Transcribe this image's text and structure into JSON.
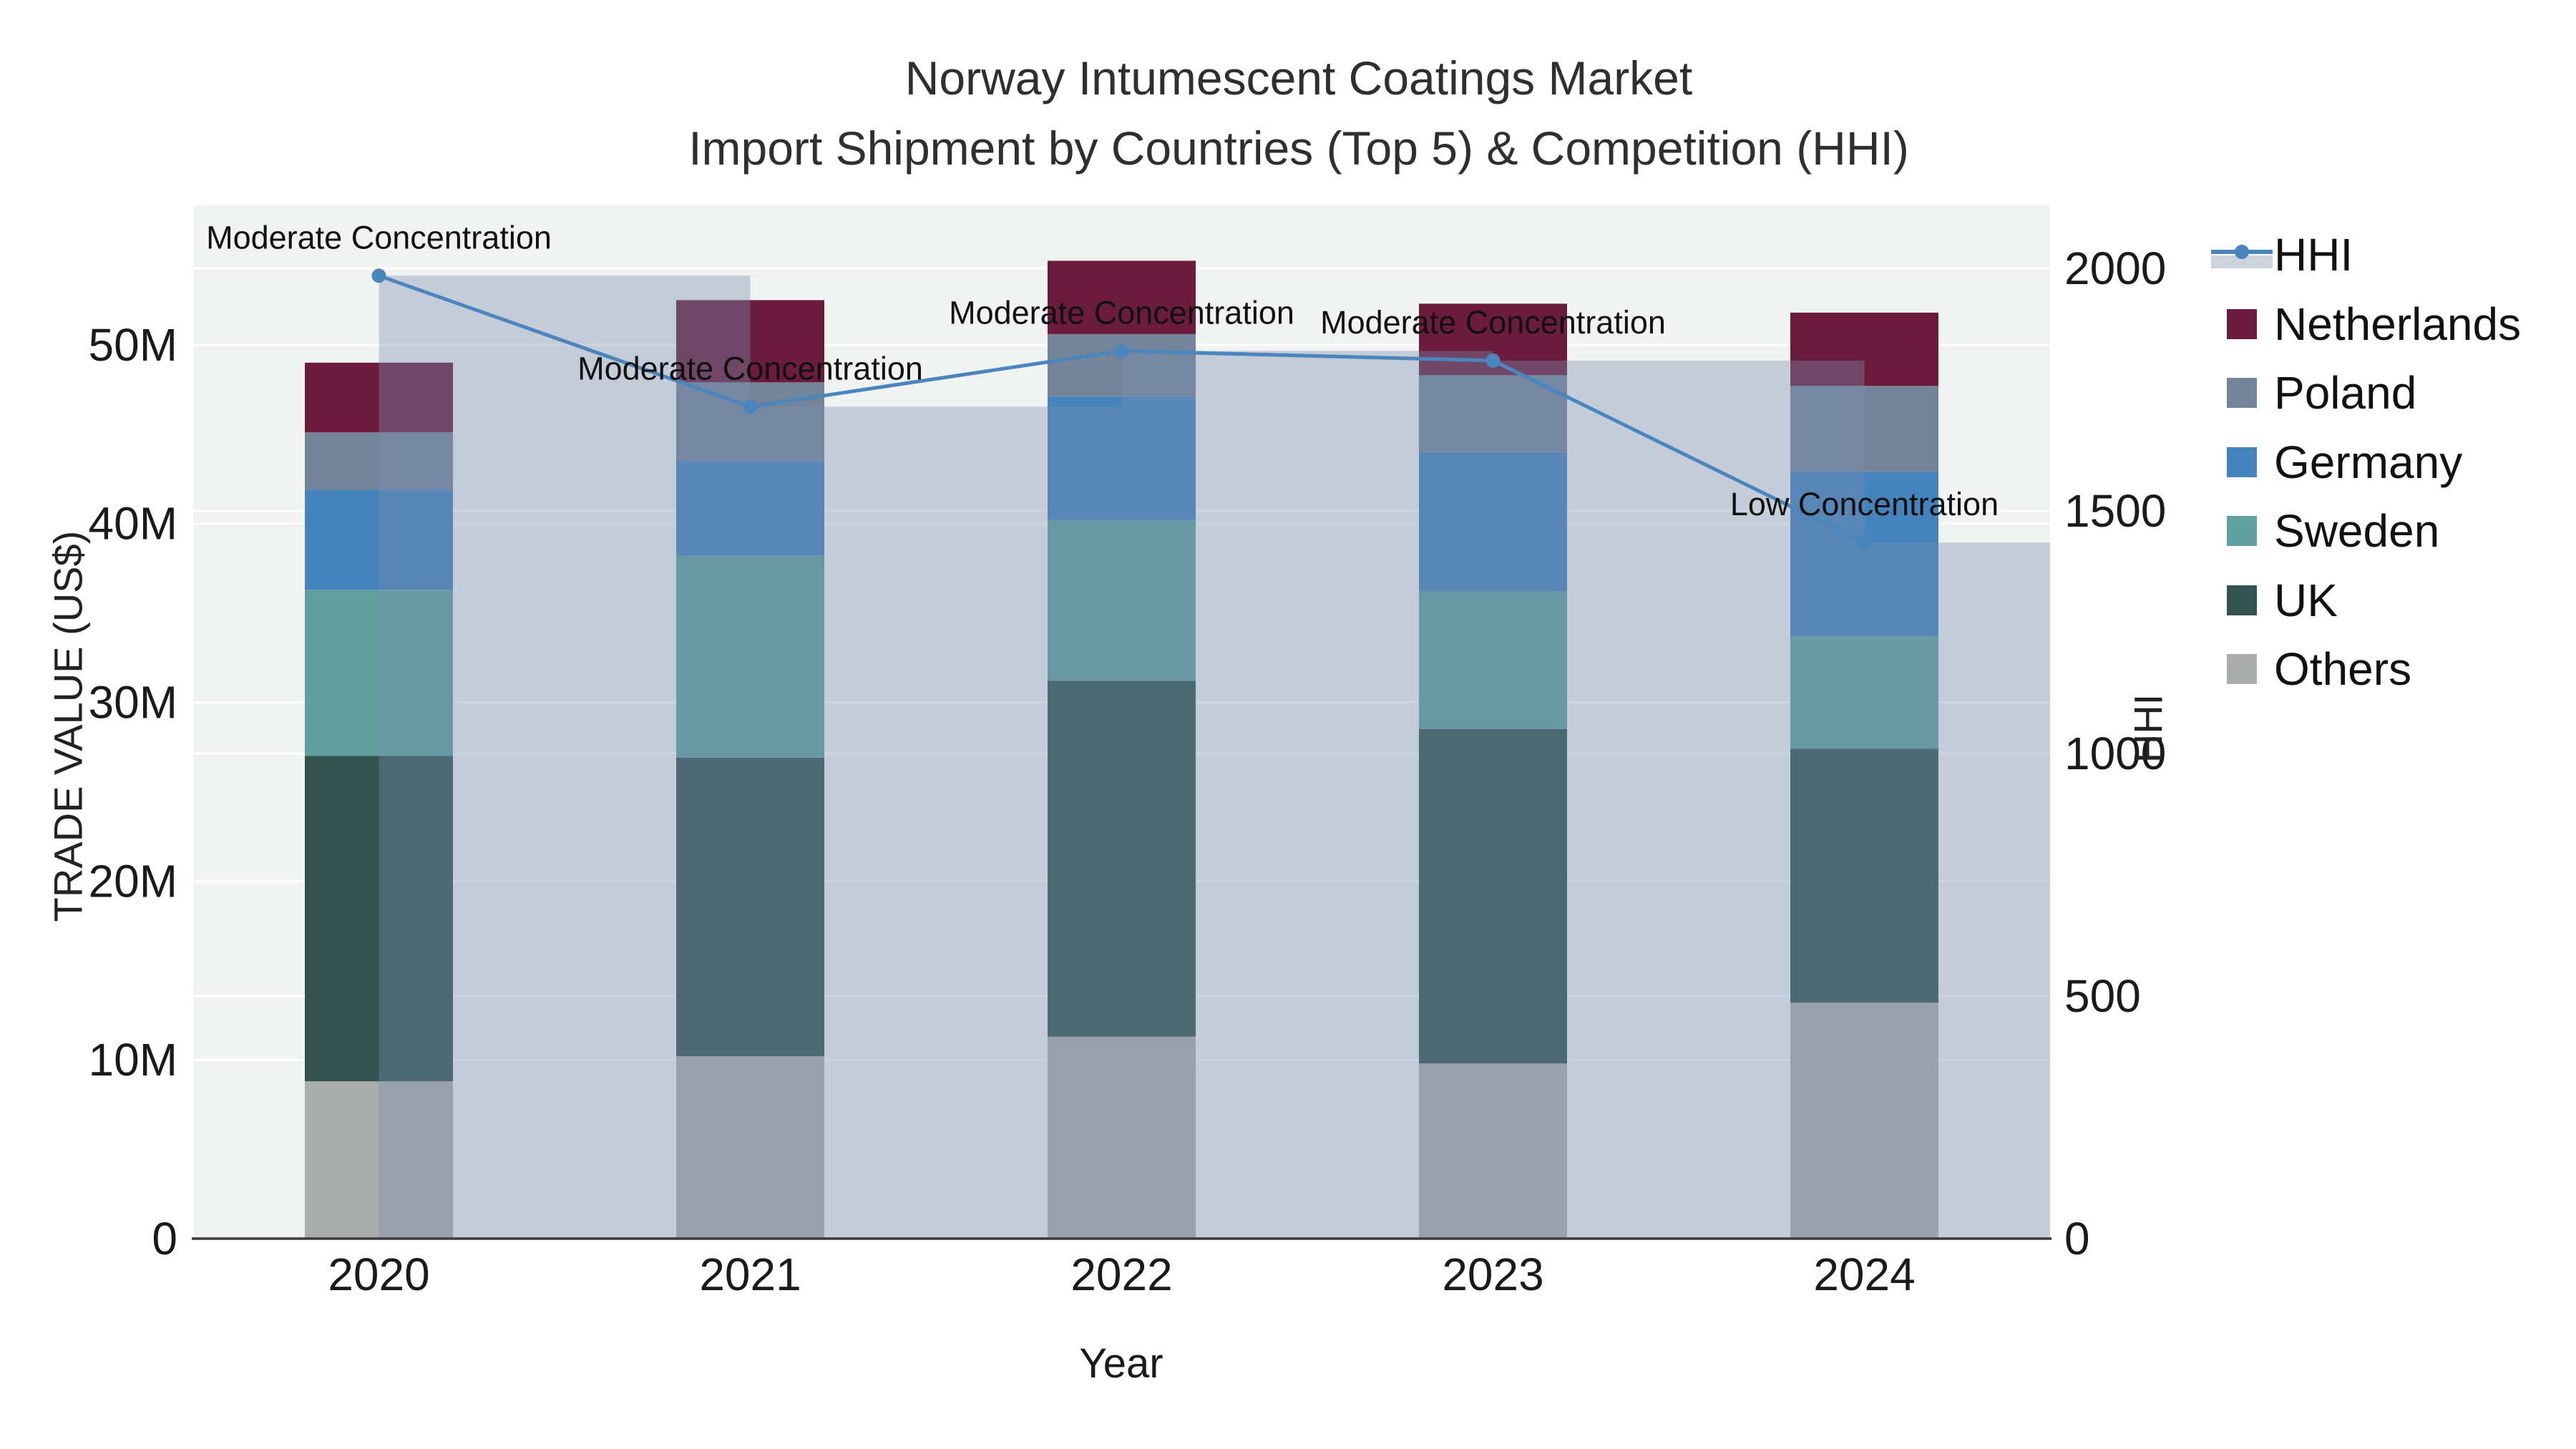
{
  "title": {
    "line1": "Norway Intumescent Coatings Market",
    "line2": "Import Shipment by Countries (Top 5) & Competition (HHI)"
  },
  "legend": {
    "items": [
      {
        "label": "HHI",
        "type": "line",
        "color": "#4A86BD"
      },
      {
        "label": "Netherlands",
        "type": "swatch",
        "color": "#6B1C3C"
      },
      {
        "label": "Poland",
        "type": "swatch",
        "color": "#74859A"
      },
      {
        "label": "Germany",
        "type": "swatch",
        "color": "#4583BD"
      },
      {
        "label": "Sweden",
        "type": "swatch",
        "color": "#60A1A0"
      },
      {
        "label": "UK",
        "type": "swatch",
        "color": "#325350"
      },
      {
        "label": "Others",
        "type": "swatch",
        "color": "#ABADAC"
      }
    ]
  },
  "chart_data": {
    "type": "bar",
    "subtype": "stacked-bars-with-line",
    "title": "Norway Intumescent Coatings Market Import Shipment by Countries (Top 5) & Competition (HHI)",
    "xlabel": "Year",
    "categories": [
      "2020",
      "2021",
      "2022",
      "2023",
      "2024"
    ],
    "series": [
      {
        "name": "Others",
        "color": "#ABADAC",
        "values": [
          8.8,
          10.2,
          11.3,
          9.8,
          13.2
        ]
      },
      {
        "name": "UK",
        "color": "#325350",
        "values": [
          18.2,
          16.7,
          19.9,
          18.7,
          14.2
        ]
      },
      {
        "name": "Sweden",
        "color": "#60A1A0",
        "values": [
          9.3,
          11.3,
          9.0,
          7.7,
          6.3
        ]
      },
      {
        "name": "Germany",
        "color": "#4583BD",
        "values": [
          5.6,
          5.3,
          6.9,
          7.8,
          9.2
        ]
      },
      {
        "name": "Poland",
        "color": "#74859A",
        "values": [
          3.2,
          4.4,
          3.5,
          4.3,
          4.8
        ]
      },
      {
        "name": "Netherlands",
        "color": "#6B1C3C",
        "values": [
          3.9,
          4.6,
          4.1,
          4.0,
          4.1
        ]
      }
    ],
    "bar_totals_musd": [
      49.0,
      52.5,
      54.7,
      52.3,
      51.8
    ],
    "hhi": {
      "name": "HHI",
      "values": [
        1985,
        1715,
        1830,
        1810,
        1435
      ],
      "line_color": "#4A86BD",
      "band_color": "rgba(120,142,173,0.38)"
    },
    "annotations": [
      {
        "x": "2020",
        "text": "Moderate Concentration"
      },
      {
        "x": "2021",
        "text": "Moderate Concentration"
      },
      {
        "x": "2022",
        "text": "Moderate Concentration"
      },
      {
        "x": "2023",
        "text": "Moderate Concentration"
      },
      {
        "x": "2024",
        "text": "Low Concentration"
      }
    ],
    "y_left": {
      "label": "TRADE VALUE (US$)",
      "ticks": [
        {
          "value": 0,
          "label": "0"
        },
        {
          "value": 10,
          "label": "10M"
        },
        {
          "value": 20,
          "label": "20M"
        },
        {
          "value": 30,
          "label": "30M"
        },
        {
          "value": 40,
          "label": "40M"
        },
        {
          "value": 50,
          "label": "50M"
        }
      ],
      "range": [
        0,
        57.8
      ]
    },
    "y_right": {
      "label": "HHI",
      "ticks": [
        {
          "value": 0,
          "label": "0"
        },
        {
          "value": 500,
          "label": "500"
        },
        {
          "value": 1000,
          "label": "1000"
        },
        {
          "value": 1500,
          "label": "1500"
        },
        {
          "value": 2000,
          "label": "2000"
        }
      ],
      "range": [
        0,
        2130
      ]
    },
    "layout_hints": {
      "plot_background": "#f1f2f2",
      "gridlines": "white, at left-axis 10M steps and right-axis 500 steps",
      "legend_position": "right",
      "hhi_bands": "translucent columns from each bar center to next bar center, top at HHI value"
    }
  }
}
